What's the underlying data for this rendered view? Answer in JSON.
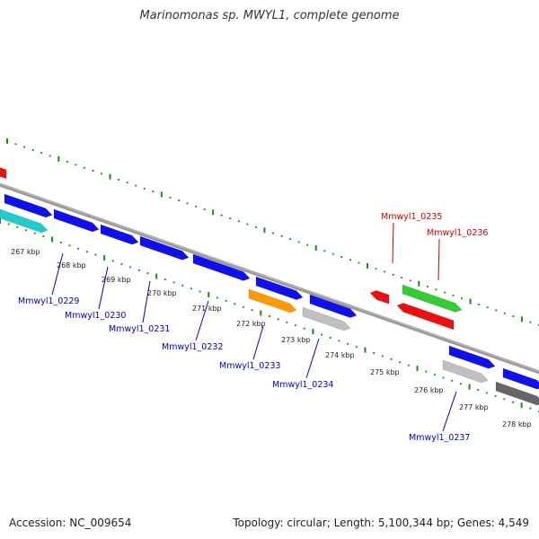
{
  "title": "Marinomonas sp. MWYL1, complete genome",
  "accession": "Accession: NC_009654",
  "topology": "Topology: circular; Length: 5,100,344 bp; Genes: 4,549",
  "colors": {
    "forward": "#1010ee",
    "reverse": "#ee1010",
    "cds_cyan": "#20cccc",
    "cds_orange": "#ff9900",
    "cds_gray": "#c0c0c0",
    "cds_dark": "#666666",
    "cds_green": "#33cc33",
    "backbone": "#888888",
    "ticks": "#1a8c1a",
    "label_blue": "#0000cc",
    "label_red": "#cc0000"
  },
  "kbp_labels": [
    "267 kbp",
    "268 kbp",
    "269 kbp",
    "270 kbp",
    "271 kbp",
    "272 kbp",
    "273 kbp",
    "274 kbp",
    "275 kbp",
    "276 kbp",
    "277 kbp",
    "278 kbp"
  ],
  "gene_labels": [
    {
      "text": "Mmwyl1_0229",
      "strand": "forward"
    },
    {
      "text": "Mmwyl1_0230",
      "strand": "forward"
    },
    {
      "text": "Mmwyl1_0231",
      "strand": "forward"
    },
    {
      "text": "Mmwyl1_0232",
      "strand": "forward"
    },
    {
      "text": "Mmwyl1_0233",
      "strand": "forward"
    },
    {
      "text": "Mmwyl1_0234",
      "strand": "forward"
    },
    {
      "text": "Mmwyl1_0235",
      "strand": "reverse"
    },
    {
      "text": "Mmwyl1_0236",
      "strand": "reverse"
    },
    {
      "text": "Mmwyl1_0237",
      "strand": "forward"
    }
  ]
}
